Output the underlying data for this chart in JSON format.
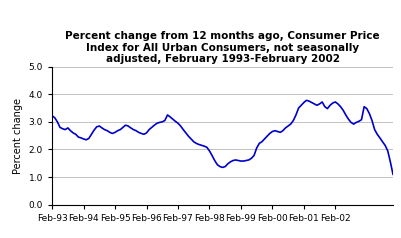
{
  "title": "Percent change from 12 months ago, Consumer Price\nIndex for All Urban Consumers, not seasonally\nadjusted, February 1993-February 2002",
  "ylabel": "Percent change",
  "ylim": [
    0.0,
    5.0
  ],
  "yticks": [
    0.0,
    1.0,
    2.0,
    3.0,
    4.0,
    5.0
  ],
  "line_color": "#0000CC",
  "line_width": 1.2,
  "background_color": "#ffffff",
  "grid_color": "#aaaaaa",
  "x_tick_labels": [
    "Feb-93",
    "Feb-94",
    "Feb-95",
    "Feb-96",
    "Feb-97",
    "Feb-98",
    "Feb-99",
    "Feb-00",
    "Feb-01",
    "Feb-02"
  ],
  "title_fontsize": 7.5,
  "tick_fontsize": 6.5,
  "ylabel_fontsize": 7,
  "values": [
    3.22,
    3.15,
    3.0,
    2.8,
    2.75,
    2.72,
    2.78,
    2.68,
    2.6,
    2.55,
    2.45,
    2.42,
    2.38,
    2.35,
    2.4,
    2.55,
    2.7,
    2.82,
    2.85,
    2.78,
    2.72,
    2.68,
    2.62,
    2.58,
    2.62,
    2.68,
    2.72,
    2.8,
    2.88,
    2.85,
    2.78,
    2.72,
    2.68,
    2.62,
    2.58,
    2.55,
    2.6,
    2.72,
    2.8,
    2.88,
    2.95,
    2.98,
    3.0,
    3.05,
    3.25,
    3.18,
    3.1,
    3.02,
    2.95,
    2.85,
    2.72,
    2.6,
    2.48,
    2.38,
    2.28,
    2.22,
    2.18,
    2.15,
    2.12,
    2.08,
    1.95,
    1.78,
    1.6,
    1.45,
    1.38,
    1.35,
    1.38,
    1.48,
    1.55,
    1.6,
    1.62,
    1.6,
    1.58,
    1.58,
    1.6,
    1.62,
    1.68,
    1.78,
    2.05,
    2.22,
    2.28,
    2.38,
    2.48,
    2.58,
    2.65,
    2.68,
    2.65,
    2.62,
    2.68,
    2.78,
    2.85,
    2.92,
    3.05,
    3.25,
    3.5,
    3.6,
    3.7,
    3.78,
    3.75,
    3.7,
    3.65,
    3.6,
    3.65,
    3.72,
    3.55,
    3.48,
    3.6,
    3.68,
    3.72,
    3.65,
    3.55,
    3.42,
    3.25,
    3.1,
    2.98,
    2.92,
    2.98,
    3.02,
    3.08,
    3.55,
    3.48,
    3.3,
    3.05,
    2.72,
    2.55,
    2.42,
    2.28,
    2.15,
    1.95,
    1.55,
    1.1
  ]
}
